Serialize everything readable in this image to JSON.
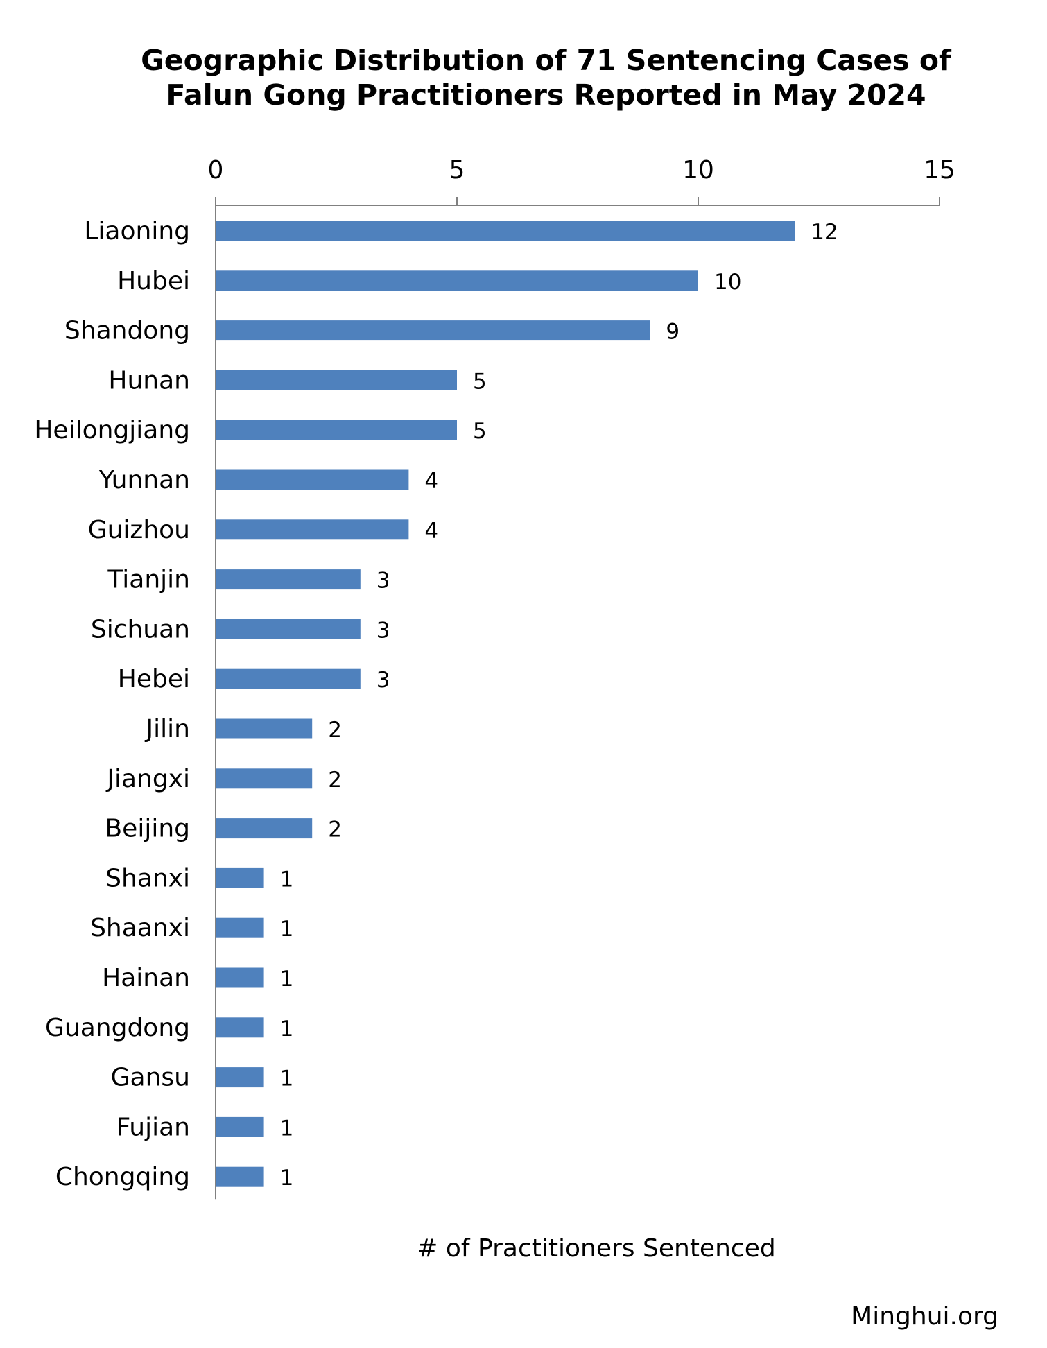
{
  "chart_data": {
    "type": "bar",
    "orientation": "horizontal",
    "title": [
      "Geographic Distribution of 71 Sentencing Cases of",
      "Falun Gong Practitioners Reported in May 2024"
    ],
    "xlabel": "# of Practitioners Sentenced",
    "ylabel": "",
    "xlim": [
      0,
      15
    ],
    "xticks": [
      "0",
      "5",
      "10",
      "15"
    ],
    "axis_position": "top",
    "grid": false,
    "legend": "none",
    "bar_color": "#4F81BD",
    "categories": [
      "Liaoning",
      "Hubei",
      "Shandong",
      "Hunan",
      "Heilongjiang",
      "Yunnan",
      "Guizhou",
      "Tianjin",
      "Sichuan",
      "Hebei",
      "Jilin",
      "Jiangxi",
      "Beijing",
      "Shanxi",
      "Shaanxi",
      "Hainan",
      "Guangdong",
      "Gansu",
      "Fujian",
      "Chongqing"
    ],
    "values": [
      12,
      10,
      9,
      5,
      5,
      4,
      4,
      3,
      3,
      3,
      2,
      2,
      2,
      1,
      1,
      1,
      1,
      1,
      1,
      1
    ]
  },
  "source": "Minghui.org"
}
